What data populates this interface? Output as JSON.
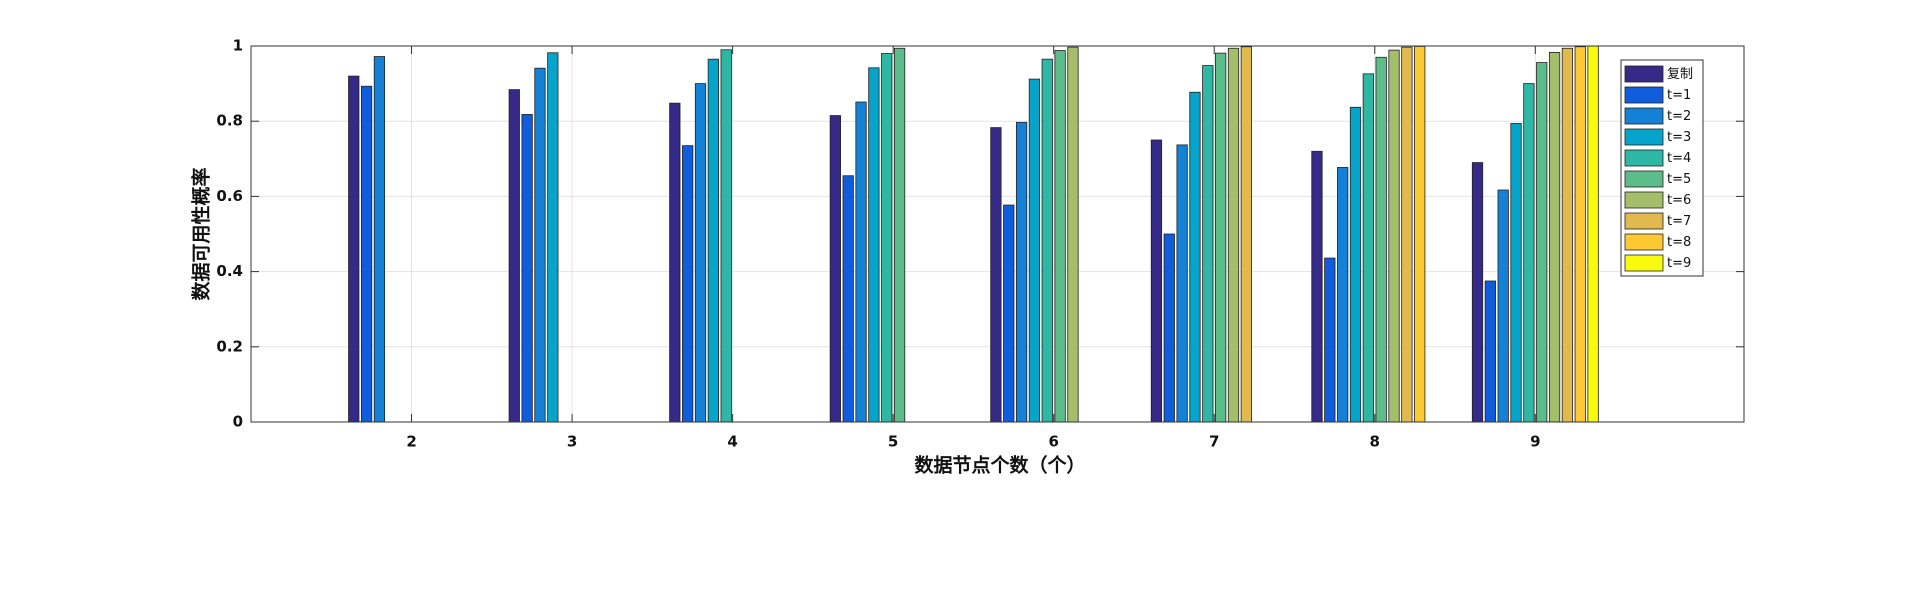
{
  "chart_data": {
    "type": "bar",
    "x_label": "数据节点个数（个）",
    "y_label": "数据可用性概率",
    "x": [
      2,
      3,
      4,
      5,
      6,
      7,
      8,
      9
    ],
    "xlim": [
      1,
      10.3
    ],
    "xticks": [
      2,
      3,
      4,
      5,
      6,
      7,
      8,
      9
    ],
    "ylim": [
      0,
      1
    ],
    "yticks": [
      0,
      0.2,
      0.4,
      0.6,
      0.8,
      1
    ],
    "grid": true,
    "legend": "upper right",
    "series": [
      {
        "name": "复制",
        "color": "#352a87",
        "values": [
          0.92,
          0.884,
          0.848,
          0.815,
          0.783,
          0.75,
          0.72,
          0.69
        ]
      },
      {
        "name": "t=1",
        "color": "#0f5cdd",
        "values": [
          0.893,
          0.818,
          0.735,
          0.655,
          0.577,
          0.5,
          0.436,
          0.375
        ]
      },
      {
        "name": "t=2",
        "color": "#1481d6",
        "values": [
          0.972,
          0.941,
          0.9,
          0.851,
          0.797,
          0.737,
          0.677,
          0.617
        ]
      },
      {
        "name": "t=3",
        "color": "#06a4ca",
        "values": [
          0,
          0.982,
          0.965,
          0.942,
          0.912,
          0.877,
          0.837,
          0.794
        ]
      },
      {
        "name": "t=4",
        "color": "#2eb7a4",
        "values": [
          0,
          0,
          0.99,
          0.98,
          0.965,
          0.948,
          0.926,
          0.9
        ]
      },
      {
        "name": "t=5",
        "color": "#5cbd8a",
        "values": [
          0,
          0,
          0,
          0.994,
          0.988,
          0.981,
          0.97,
          0.956
        ]
      },
      {
        "name": "t=6",
        "color": "#a5be6a",
        "values": [
          0,
          0,
          0,
          0,
          0.997,
          0.994,
          0.989,
          0.983
        ]
      },
      {
        "name": "t=7",
        "color": "#e1b94f",
        "values": [
          0,
          0,
          0,
          0,
          0,
          0.998,
          0.997,
          0.994
        ]
      },
      {
        "name": "t=8",
        "color": "#fcc932",
        "values": [
          0,
          0,
          0,
          0,
          0,
          0,
          0.999,
          0.998
        ]
      },
      {
        "name": "t=9",
        "color": "#f9fb0e",
        "values": [
          0,
          0,
          0,
          0,
          0,
          0,
          0,
          1.0
        ]
      }
    ]
  }
}
